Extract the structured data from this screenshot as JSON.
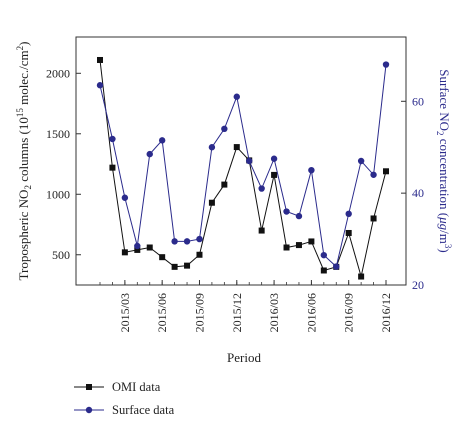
{
  "chart_data": {
    "type": "line",
    "x_tick_labels": [
      "2015/03",
      "2015/06",
      "2015/09",
      "2015/12",
      "2016/03",
      "2016/06",
      "2016/09",
      "2016/12"
    ],
    "xlabel": "Period",
    "ylabel_left": "Tropospheric NO2 columns (10^15 molec./cm^2)",
    "ylabel_right": "Surface NO2 concentration (μg/m^3)",
    "ylim_left": [
      250,
      2300
    ],
    "yticks_left": [
      500,
      1000,
      1500,
      2000
    ],
    "ylim_right": [
      20,
      74
    ],
    "yticks_right": [
      20,
      40,
      60
    ],
    "x_period_index_range": [
      0,
      23
    ],
    "series": [
      {
        "name": "OMI data",
        "axis": "left",
        "color": "#111111",
        "marker": "square",
        "values": [
          2110,
          1220,
          520,
          540,
          560,
          480,
          400,
          410,
          500,
          930,
          1080,
          1390,
          1280,
          700,
          1160,
          560,
          580,
          610,
          370,
          400,
          680,
          320,
          800,
          1190
        ]
      },
      {
        "name": "Surface data",
        "axis": "right",
        "color": "#2b2b8c",
        "marker": "circle",
        "values": [
          63.5,
          51.8,
          39,
          28.5,
          48.5,
          51.5,
          29.5,
          29.5,
          30,
          50,
          54,
          61,
          47,
          41,
          47.5,
          36,
          35,
          45,
          26.5,
          24,
          35.5,
          47,
          44,
          68
        ]
      }
    ]
  },
  "legend": [
    {
      "label": "OMI data"
    },
    {
      "label": "Surface data"
    }
  ]
}
